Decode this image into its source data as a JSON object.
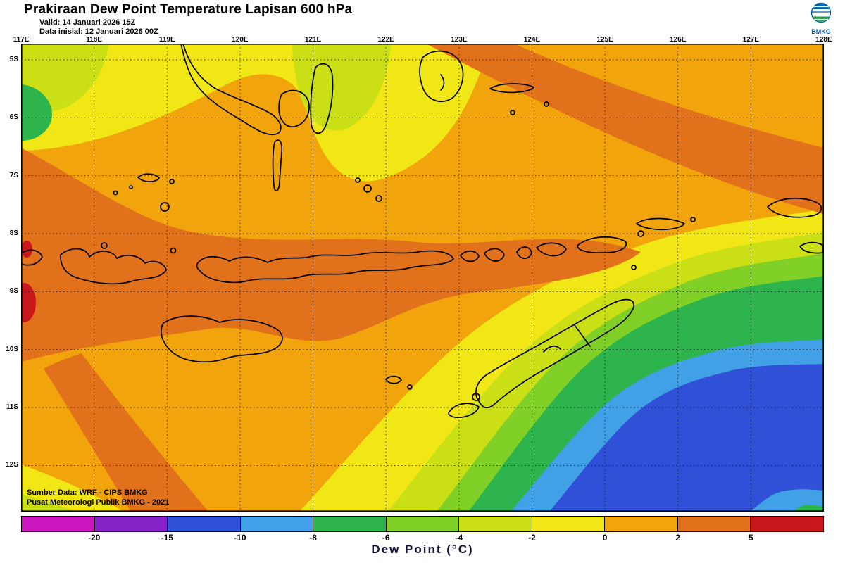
{
  "header": {
    "title": "Prakiraan Dew Point Temperature Lapisan 600 hPa",
    "valid_line": "Valid: 14 Januari 2026 15Z",
    "init_line": "Data inisial: 12 Januari 2026 00Z",
    "logo_text": "BMKG"
  },
  "map": {
    "lon_labels": [
      "117E",
      "118E",
      "119E",
      "120E",
      "121E",
      "122E",
      "123E",
      "124E",
      "125E",
      "126E",
      "127E",
      "128E"
    ],
    "lat_labels": [
      "5S",
      "6S",
      "7S",
      "8S",
      "9S",
      "10S",
      "11S",
      "12S"
    ],
    "credit_line1": "Sumber Data: WRF - CIPS BMKG",
    "credit_line2": "Pusat Meteorologi Publik BMKG - 2021"
  },
  "colorbar": {
    "title": "Dew Point (°C)",
    "tick_labels": [
      "-20",
      "-15",
      "-10",
      "-8",
      "-6",
      "-4",
      "-2",
      "0",
      "2",
      "5"
    ],
    "colors": [
      "#cc17c0",
      "#8722c9",
      "#3050d8",
      "#41a0e6",
      "#2db44d",
      "#80d028",
      "#cbdf16",
      "#f2e716",
      "#f2a40c",
      "#e2711c",
      "#c9181d"
    ]
  }
}
